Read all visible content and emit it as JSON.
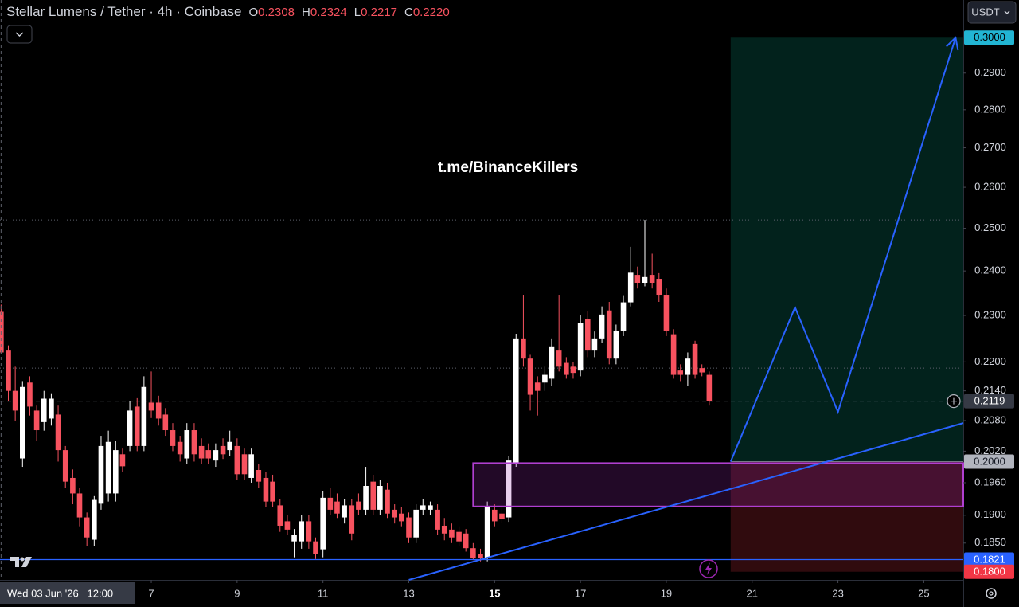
{
  "chart_data": {
    "type": "candlestick",
    "title": "Stellar Lumens / Tether · 4h · Coinbase",
    "legend": [
      {
        "key": "O",
        "value": 0.2308,
        "label": "0.2308"
      },
      {
        "key": "H",
        "value": 0.2324,
        "label": "0.2324"
      },
      {
        "key": "L",
        "value": 0.2217,
        "label": "0.2217"
      },
      {
        "key": "C",
        "value": 0.222,
        "label": "0.2220"
      }
    ],
    "currency": "USDT",
    "watermark": "t.me/BinanceKillers",
    "log_scale": true,
    "up_color": "#ffffff",
    "down_color": "#f7525f",
    "xlim": [
      3.475,
      25.92
    ],
    "ylim": [
      0.1786,
      0.311
    ],
    "xticks": [
      7,
      9,
      11,
      13,
      15,
      17,
      19,
      21,
      23,
      25
    ],
    "xtick_bold": 15,
    "crosshair_x": {
      "value": 3.5,
      "label": "Wed 03 Jun '26   12:00"
    },
    "yticks": [
      {
        "value": 0.29,
        "label": "0.2900"
      },
      {
        "value": 0.28,
        "label": "0.2800"
      },
      {
        "value": 0.27,
        "label": "0.2700"
      },
      {
        "value": 0.26,
        "label": "0.2600"
      },
      {
        "value": 0.25,
        "label": "0.2500"
      },
      {
        "value": 0.24,
        "label": "0.2400"
      },
      {
        "value": 0.23,
        "label": "0.2300"
      },
      {
        "value": 0.22,
        "label": "0.2200"
      },
      {
        "value": 0.214,
        "label": "0.2140"
      },
      {
        "value": 0.208,
        "label": "0.2080"
      },
      {
        "value": 0.202,
        "label": "0.2020"
      },
      {
        "value": 0.196,
        "label": "0.1960"
      },
      {
        "value": 0.19,
        "label": "0.1900"
      },
      {
        "value": 0.185,
        "label": "0.1850"
      }
    ],
    "x": [
      3.5,
      3.67,
      3.83,
      4,
      4.17,
      4.33,
      4.5,
      4.67,
      4.83,
      5,
      5.17,
      5.33,
      5.5,
      5.67,
      5.83,
      6,
      6.17,
      6.33,
      6.5,
      6.67,
      6.83,
      7,
      7.17,
      7.33,
      7.5,
      7.67,
      7.83,
      8,
      8.17,
      8.33,
      8.5,
      8.67,
      8.83,
      9,
      9.17,
      9.33,
      9.5,
      9.67,
      9.83,
      10,
      10.17,
      10.33,
      10.5,
      10.67,
      10.83,
      11,
      11.17,
      11.33,
      11.5,
      11.67,
      11.83,
      12,
      12.17,
      12.33,
      12.5,
      12.67,
      12.83,
      13,
      13.17,
      13.33,
      13.5,
      13.67,
      13.83,
      14,
      14.17,
      14.33,
      14.5,
      14.67,
      14.83,
      15,
      15.17,
      15.33,
      15.5,
      15.67,
      15.83,
      16,
      16.17,
      16.33,
      16.5,
      16.67,
      16.83,
      17,
      17.17,
      17.33,
      17.5,
      17.67,
      17.83,
      18,
      18.17,
      18.33,
      18.5,
      18.67,
      18.83,
      19,
      19.17,
      19.33,
      19.5,
      19.67,
      19.83,
      20
    ],
    "open": [
      0.2308,
      0.2224,
      0.214,
      0.2006,
      0.2157,
      0.21,
      0.2077,
      0.2084,
      0.2092,
      0.2022,
      0.1969,
      0.194,
      0.1896,
      0.1856,
      0.1921,
      0.194,
      0.194,
      0.2014,
      0.203,
      0.2108,
      0.203,
      0.2116,
      0.2116,
      0.2092,
      0.2061,
      0.2038,
      0.2006,
      0.2061,
      0.203,
      0.2022,
      0.2002,
      0.203,
      0.2022,
      0.203,
      0.2014,
      0.1969,
      0.1984,
      0.1969,
      0.1962,
      0.1918,
      0.1889,
      0.1853,
      0.1853,
      0.1889,
      0.1853,
      0.1839,
      0.1932,
      0.1925,
      0.1896,
      0.1918,
      0.1925,
      0.191,
      0.1962,
      0.191,
      0.1947,
      0.191,
      0.1903,
      0.1896,
      0.186,
      0.191,
      0.191,
      0.191,
      0.1881,
      0.1874,
      0.187,
      0.1867,
      0.1841,
      0.1831,
      0.1824,
      0.191,
      0.1903,
      0.1896,
      0.1998,
      0.225,
      0.2207,
      0.2157,
      0.2157,
      0.2165,
      0.2224,
      0.2198,
      0.219,
      0.2182,
      0.2293,
      0.2224,
      0.225,
      0.2311,
      0.2207,
      0.2267,
      0.2329,
      0.2391,
      0.2373,
      0.2391,
      0.2382,
      0.2346,
      0.2259,
      0.2182,
      0.2173,
      0.2238,
      0.2187,
      0.2173
    ],
    "high": [
      0.2324,
      0.2235,
      0.219,
      0.216,
      0.217,
      0.211,
      0.214,
      0.2135,
      0.211,
      0.203,
      0.1985,
      0.195,
      0.1905,
      0.1935,
      0.205,
      0.206,
      0.204,
      0.2025,
      0.212,
      0.2125,
      0.217,
      0.218,
      0.213,
      0.2105,
      0.2075,
      0.205,
      0.2075,
      0.2075,
      0.2045,
      0.2035,
      0.2035,
      0.2045,
      0.206,
      0.2045,
      0.2025,
      0.2025,
      0.1995,
      0.198,
      0.1975,
      0.193,
      0.19,
      0.1875,
      0.19,
      0.19,
      0.186,
      0.1945,
      0.195,
      0.194,
      0.193,
      0.193,
      0.194,
      0.199,
      0.1975,
      0.1965,
      0.196,
      0.192,
      0.1915,
      0.1905,
      0.192,
      0.193,
      0.1925,
      0.192,
      0.1895,
      0.1885,
      0.188,
      0.1875,
      0.185,
      0.184,
      0.1925,
      0.192,
      0.1915,
      0.201,
      0.226,
      0.2346,
      0.2215,
      0.217,
      0.219,
      0.225,
      0.2346,
      0.221,
      0.22,
      0.23,
      0.231,
      0.2265,
      0.232,
      0.233,
      0.228,
      0.2345,
      0.2456,
      0.241,
      0.252,
      0.244,
      0.2395,
      0.236,
      0.227,
      0.2195,
      0.222,
      0.2245,
      0.2195,
      0.218
    ],
    "low": [
      0.2217,
      0.212,
      0.208,
      0.199,
      0.209,
      0.204,
      0.206,
      0.207,
      0.2,
      0.195,
      0.192,
      0.188,
      0.1845,
      0.1845,
      0.191,
      0.1925,
      0.1925,
      0.198,
      0.202,
      0.202,
      0.202,
      0.2085,
      0.207,
      0.205,
      0.202,
      0.2,
      0.1995,
      0.2,
      0.1995,
      0.1995,
      0.199,
      0.2005,
      0.201,
      0.1965,
      0.1965,
      0.196,
      0.195,
      0.1915,
      0.1915,
      0.187,
      0.1865,
      0.1825,
      0.184,
      0.184,
      0.1822,
      0.1825,
      0.19,
      0.1895,
      0.1885,
      0.1855,
      0.19,
      0.19,
      0.19,
      0.19,
      0.1895,
      0.1885,
      0.188,
      0.185,
      0.185,
      0.19,
      0.19,
      0.1865,
      0.1855,
      0.185,
      0.1845,
      0.1835,
      0.182,
      0.1818,
      0.1818,
      0.188,
      0.1885,
      0.1888,
      0.199,
      0.219,
      0.21,
      0.209,
      0.214,
      0.215,
      0.218,
      0.2165,
      0.2165,
      0.217,
      0.221,
      0.221,
      0.224,
      0.2195,
      0.2195,
      0.2255,
      0.232,
      0.236,
      0.2365,
      0.236,
      0.233,
      0.2255,
      0.2165,
      0.216,
      0.215,
      0.2165,
      0.217,
      0.211
    ],
    "close": [
      0.222,
      0.214,
      0.21,
      0.2148,
      0.2108,
      0.2061,
      0.2124,
      0.2124,
      0.2022,
      0.1962,
      0.194,
      0.1896,
      0.186,
      0.1928,
      0.203,
      0.2038,
      0.2022,
      0.1991,
      0.21,
      0.203,
      0.2148,
      0.21,
      0.2084,
      0.2061,
      0.203,
      0.2014,
      0.2061,
      0.2014,
      0.2006,
      0.2006,
      0.2022,
      0.2014,
      0.2038,
      0.1976,
      0.1976,
      0.2014,
      0.1962,
      0.1925,
      0.1925,
      0.1881,
      0.1874,
      0.1864,
      0.1889,
      0.1853,
      0.1831,
      0.1932,
      0.191,
      0.1903,
      0.1918,
      0.1867,
      0.191,
      0.1954,
      0.191,
      0.1954,
      0.1903,
      0.1896,
      0.1889,
      0.186,
      0.191,
      0.1918,
      0.1918,
      0.1874,
      0.1867,
      0.186,
      0.1853,
      0.1841,
      0.1824,
      0.1824,
      0.1915,
      0.1889,
      0.1893,
      0.2002,
      0.225,
      0.2207,
      0.2132,
      0.214,
      0.2173,
      0.2233,
      0.219,
      0.2173,
      0.2177,
      0.2284,
      0.2224,
      0.225,
      0.2302,
      0.2207,
      0.2267,
      0.2329,
      0.2396,
      0.2373,
      0.2386,
      0.2373,
      0.2346,
      0.2267,
      0.2173,
      0.2173,
      0.2207,
      0.2173,
      0.2178,
      0.2119
    ],
    "drawings": {
      "long_position": {
        "x": [
          20.5,
          25.92
        ],
        "target": 0.3,
        "entry": 0.2,
        "stop": 0.18
      },
      "zone": {
        "x": [
          14.5,
          25.92
        ],
        "y": [
          0.1916,
          0.1997
        ]
      },
      "trendline": {
        "x": [
          13,
          25.92
        ],
        "y": [
          0.1786,
          0.2075
        ]
      },
      "path": {
        "x": [
          20.5,
          22,
          23,
          25.74
        ],
        "y": [
          0.2,
          0.2318,
          0.2097,
          0.3
        ]
      },
      "horizontal_line": 0.1821,
      "dotted_levels": [
        0.252,
        0.2187
      ],
      "last_price": 0.2119
    },
    "price_labels": [
      {
        "value": 0.3,
        "label": "0.3000",
        "color": "#22b5d3",
        "text_color": "#000000"
      },
      {
        "value": 0.2119,
        "label": "0.2119",
        "color": "#363a45",
        "text_color": "#ffffff"
      },
      {
        "value": 0.2,
        "label": "0.2000",
        "color": "#b2b5be",
        "text_color": "#131722"
      },
      {
        "value": 0.1821,
        "label": "0.1821",
        "color": "#2962ff",
        "text_color": "#ffffff"
      },
      {
        "value": 0.18,
        "label": "0.1800",
        "color": "#f23645",
        "text_color": "#ffffff"
      }
    ]
  }
}
